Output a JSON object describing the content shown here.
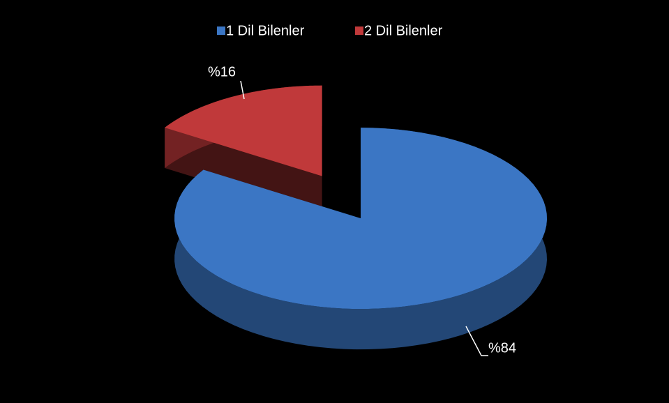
{
  "chart_data": {
    "type": "pie3d",
    "categories": [
      "1 Dil Bilenler",
      "2 Dil Bilenler"
    ],
    "values": [
      84,
      16
    ],
    "value_labels": [
      "%84",
      "%16"
    ],
    "colors": [
      "#3b76c4",
      "#c0393a"
    ],
    "legend": "top"
  }
}
